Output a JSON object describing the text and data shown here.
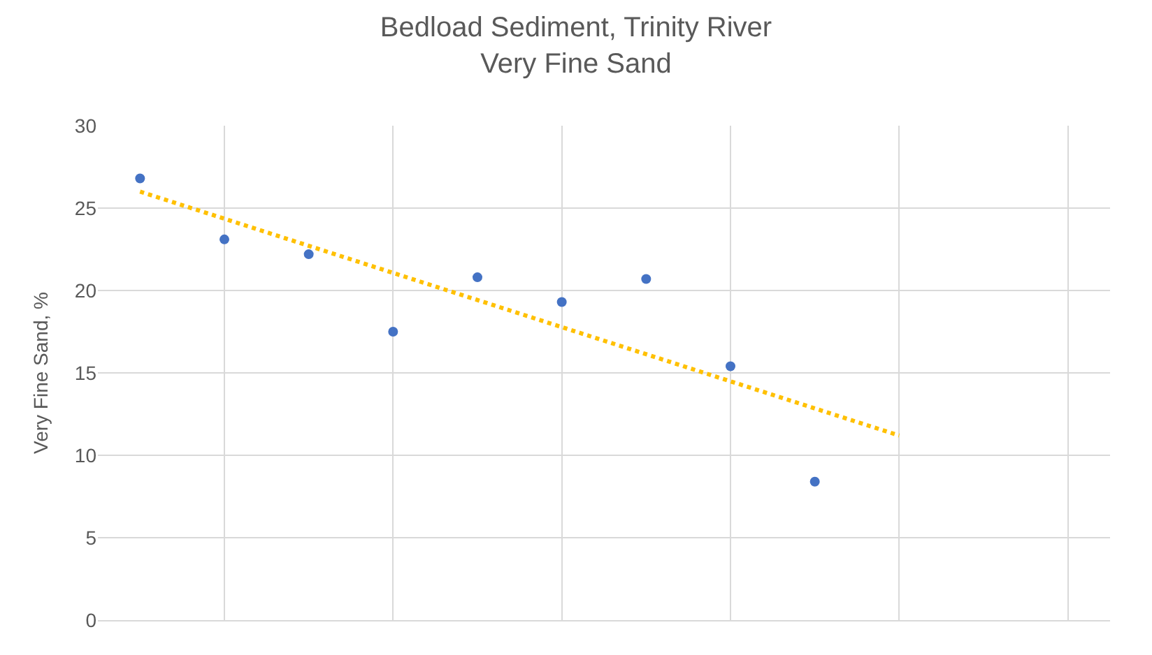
{
  "chart_data": {
    "type": "scatter",
    "title": "Bedload Sediment, Trinity River",
    "subtitle": "Very Fine Sand",
    "ylabel": "Very Fine Sand, %",
    "categories": [
      null,
      null,
      null,
      null,
      null,
      null,
      null,
      null,
      null,
      null,
      null,
      null
    ],
    "series": [
      {
        "color": "#4472c4",
        "marker": "circle",
        "values": [
          26.8,
          23.1,
          22.2,
          17.5,
          20.8,
          19.3,
          20.7,
          15.4,
          8.4,
          null,
          null,
          null
        ]
      },
      {
        "type": "line",
        "color": "#ffc000",
        "line_style": "dotted",
        "marker": "none",
        "values": [
          26.0,
          null,
          null,
          null,
          null,
          null,
          null,
          null,
          null,
          11.2,
          null,
          null
        ]
      }
    ],
    "ylim": [
      0,
      30
    ],
    "yticks": [
      0,
      5,
      10,
      15,
      20,
      25,
      30
    ],
    "grid": true,
    "legend": false,
    "tick_labels": "y"
  }
}
